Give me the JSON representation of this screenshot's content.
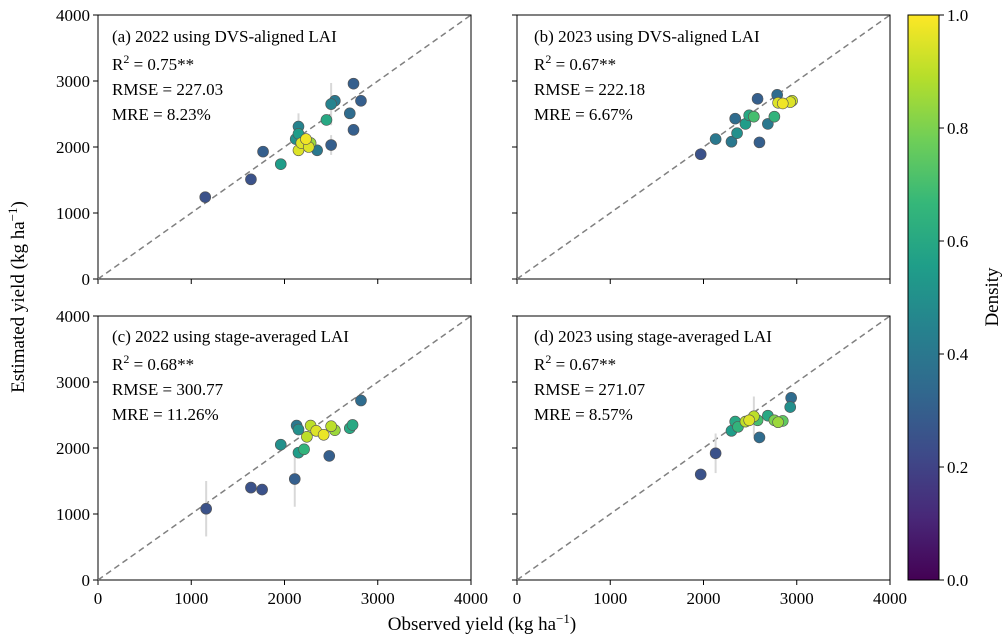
{
  "figure": {
    "xlabel": "Observed yield (kg ha",
    "ylabel": "Estimated yield (kg ha",
    "unit_superscript": "−1"
  },
  "colorbar": {
    "label": "Density",
    "ticks": [
      "0.0",
      "0.2",
      "0.4",
      "0.6",
      "0.8",
      "1.0"
    ],
    "range": [
      0,
      1
    ],
    "colormap": "viridis",
    "stops": [
      "#440154",
      "#482878",
      "#3e4a89",
      "#31688e",
      "#26828e",
      "#1f9e89",
      "#35b779",
      "#6ece58",
      "#b5de2b",
      "#fde725"
    ]
  },
  "axis_ticks": {
    "x": [
      "0",
      "1000",
      "2000",
      "3000",
      "4000"
    ],
    "y": [
      "0",
      "1000",
      "2000",
      "3000",
      "4000"
    ]
  },
  "chart_data": [
    {
      "type": "scatter",
      "panel": "a",
      "title": "(a) 2022 using DVS-aligned LAI",
      "r2_label": "R",
      "r2_value": " = 0.75**",
      "rmse": "RMSE = 227.03",
      "mre": "MRE = 8.23%",
      "xlim": [
        0,
        4000
      ],
      "ylim": [
        0,
        4000
      ],
      "reference_line": "1:1 dashed",
      "points": [
        {
          "x": 1150,
          "y": 1240,
          "d": 0.25
        },
        {
          "x": 1640,
          "y": 1510,
          "d": 0.25
        },
        {
          "x": 1770,
          "y": 1930,
          "d": 0.3
        },
        {
          "x": 1960,
          "y": 1740,
          "d": 0.55
        },
        {
          "x": 2120,
          "y": 2120,
          "d": 0.5
        },
        {
          "x": 2150,
          "y": 2310,
          "d": 0.45
        },
        {
          "x": 2150,
          "y": 2200,
          "d": 0.55
        },
        {
          "x": 2150,
          "y": 1950,
          "d": 0.95
        },
        {
          "x": 2180,
          "y": 2060,
          "d": 0.95
        },
        {
          "x": 2230,
          "y": 2120,
          "d": 0.98
        },
        {
          "x": 2260,
          "y": 2000,
          "d": 0.95
        },
        {
          "x": 2280,
          "y": 2060,
          "d": 0.85
        },
        {
          "x": 2350,
          "y": 1950,
          "d": 0.4
        },
        {
          "x": 2450,
          "y": 2410,
          "d": 0.6
        },
        {
          "x": 2500,
          "y": 2650,
          "d": 0.45
        },
        {
          "x": 2500,
          "y": 2030,
          "d": 0.3
        },
        {
          "x": 2540,
          "y": 2700,
          "d": 0.4
        },
        {
          "x": 2700,
          "y": 2510,
          "d": 0.35
        },
        {
          "x": 2740,
          "y": 2960,
          "d": 0.3
        },
        {
          "x": 2740,
          "y": 2260,
          "d": 0.3
        },
        {
          "x": 2820,
          "y": 2700,
          "d": 0.3
        }
      ],
      "error_bars": [
        {
          "x": 2150,
          "y": 2310,
          "err": 200
        },
        {
          "x": 2500,
          "y": 2650,
          "err": 320
        },
        {
          "x": 2500,
          "y": 2030,
          "err": 150
        }
      ]
    },
    {
      "type": "scatter",
      "panel": "b",
      "title": "(b) 2023 using DVS-aligned LAI",
      "r2_label": "R",
      "r2_value": " = 0.67**",
      "rmse": "RMSE = 222.18",
      "mre": "MRE = 6.67%",
      "xlim": [
        0,
        4000
      ],
      "ylim": [
        0,
        4000
      ],
      "reference_line": "1:1 dashed",
      "points": [
        {
          "x": 1970,
          "y": 1890,
          "d": 0.25
        },
        {
          "x": 2130,
          "y": 2120,
          "d": 0.4
        },
        {
          "x": 2300,
          "y": 2080,
          "d": 0.4
        },
        {
          "x": 2340,
          "y": 2430,
          "d": 0.35
        },
        {
          "x": 2360,
          "y": 2210,
          "d": 0.5
        },
        {
          "x": 2450,
          "y": 2350,
          "d": 0.55
        },
        {
          "x": 2490,
          "y": 2480,
          "d": 0.6
        },
        {
          "x": 2540,
          "y": 2460,
          "d": 0.7
        },
        {
          "x": 2580,
          "y": 2730,
          "d": 0.3
        },
        {
          "x": 2600,
          "y": 2070,
          "d": 0.3
        },
        {
          "x": 2690,
          "y": 2350,
          "d": 0.4
        },
        {
          "x": 2760,
          "y": 2460,
          "d": 0.65
        },
        {
          "x": 2790,
          "y": 2790,
          "d": 0.35
        },
        {
          "x": 2800,
          "y": 2670,
          "d": 0.95
        },
        {
          "x": 2850,
          "y": 2660,
          "d": 0.98
        },
        {
          "x": 2930,
          "y": 2680,
          "d": 0.95
        },
        {
          "x": 2950,
          "y": 2700,
          "d": 0.92
        }
      ],
      "error_bars": []
    },
    {
      "type": "scatter",
      "panel": "c",
      "title": "(c) 2022 using stage-averaged LAI",
      "r2_label": "R",
      "r2_value": " = 0.68**",
      "rmse": "RMSE = 300.77",
      "mre": "MRE = 11.26%",
      "xlim": [
        0,
        4000
      ],
      "ylim": [
        0,
        4000
      ],
      "reference_line": "1:1 dashed",
      "points": [
        {
          "x": 1160,
          "y": 1080,
          "d": 0.25
        },
        {
          "x": 1640,
          "y": 1400,
          "d": 0.25
        },
        {
          "x": 1760,
          "y": 1370,
          "d": 0.25
        },
        {
          "x": 1960,
          "y": 2050,
          "d": 0.5
        },
        {
          "x": 2110,
          "y": 1530,
          "d": 0.3
        },
        {
          "x": 2130,
          "y": 2340,
          "d": 0.4
        },
        {
          "x": 2150,
          "y": 2280,
          "d": 0.5
        },
        {
          "x": 2150,
          "y": 1930,
          "d": 0.55
        },
        {
          "x": 2210,
          "y": 1980,
          "d": 0.65
        },
        {
          "x": 2240,
          "y": 2170,
          "d": 0.9
        },
        {
          "x": 2280,
          "y": 2340,
          "d": 0.9
        },
        {
          "x": 2340,
          "y": 2260,
          "d": 0.95
        },
        {
          "x": 2420,
          "y": 2200,
          "d": 0.97
        },
        {
          "x": 2480,
          "y": 1880,
          "d": 0.3
        },
        {
          "x": 2500,
          "y": 2330,
          "d": 0.9
        },
        {
          "x": 2540,
          "y": 2270,
          "d": 0.85
        },
        {
          "x": 2700,
          "y": 2300,
          "d": 0.6
        },
        {
          "x": 2730,
          "y": 2350,
          "d": 0.6
        },
        {
          "x": 2820,
          "y": 2720,
          "d": 0.35
        }
      ],
      "error_bars": [
        {
          "x": 1160,
          "y": 1080,
          "err": 420
        },
        {
          "x": 2110,
          "y": 1530,
          "err": 420
        }
      ]
    },
    {
      "type": "scatter",
      "panel": "d",
      "title": "(d) 2023 using stage-averaged LAI",
      "r2_label": "R",
      "r2_value": " = 0.67**",
      "rmse": "RMSE = 271.07",
      "mre": "MRE = 8.57%",
      "xlim": [
        0,
        4000
      ],
      "ylim": [
        0,
        4000
      ],
      "reference_line": "1:1 dashed",
      "points": [
        {
          "x": 1970,
          "y": 1600,
          "d": 0.25
        },
        {
          "x": 2130,
          "y": 1920,
          "d": 0.25
        },
        {
          "x": 2300,
          "y": 2260,
          "d": 0.55
        },
        {
          "x": 2340,
          "y": 2400,
          "d": 0.6
        },
        {
          "x": 2370,
          "y": 2320,
          "d": 0.65
        },
        {
          "x": 2450,
          "y": 2400,
          "d": 0.9
        },
        {
          "x": 2490,
          "y": 2420,
          "d": 0.95
        },
        {
          "x": 2540,
          "y": 2480,
          "d": 0.9
        },
        {
          "x": 2580,
          "y": 2420,
          "d": 0.7
        },
        {
          "x": 2600,
          "y": 2160,
          "d": 0.35
        },
        {
          "x": 2690,
          "y": 2490,
          "d": 0.6
        },
        {
          "x": 2760,
          "y": 2420,
          "d": 0.8
        },
        {
          "x": 2800,
          "y": 2390,
          "d": 0.85
        },
        {
          "x": 2850,
          "y": 2410,
          "d": 0.75
        },
        {
          "x": 2930,
          "y": 2620,
          "d": 0.5
        },
        {
          "x": 2940,
          "y": 2760,
          "d": 0.35
        }
      ],
      "error_bars": [
        {
          "x": 2130,
          "y": 1920,
          "err": 300
        },
        {
          "x": 2540,
          "y": 2480,
          "err": 300
        }
      ]
    }
  ]
}
